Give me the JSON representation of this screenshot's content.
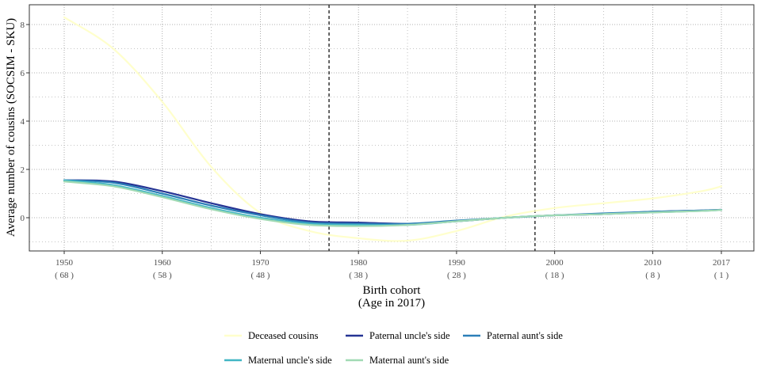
{
  "chart_data": {
    "type": "line",
    "title": "",
    "xlabel": "Birth cohort",
    "xlabel_sub": "(Age in 2017)",
    "ylabel": "Average number of cousins (SOCSIM - SKU)",
    "xlim": [
      1950,
      2017
    ],
    "ylim": [
      -1.5,
      8.8
    ],
    "grid": true,
    "legend_position": "bottom",
    "x_ticks": [
      {
        "year": 1950,
        "label": "1950",
        "age": "( 68 )"
      },
      {
        "year": 1960,
        "label": "1960",
        "age": "( 58 )"
      },
      {
        "year": 1970,
        "label": "1970",
        "age": "( 48 )"
      },
      {
        "year": 1980,
        "label": "1980",
        "age": "( 38 )"
      },
      {
        "year": 1990,
        "label": "1990",
        "age": "( 28 )"
      },
      {
        "year": 2000,
        "label": "2000",
        "age": "( 18 )"
      },
      {
        "year": 2010,
        "label": "2010",
        "age": "( 8 )"
      },
      {
        "year": 2017,
        "label": "2017",
        "age": "( 1 )"
      }
    ],
    "y_ticks": [
      {
        "value": 0,
        "label": "0"
      },
      {
        "value": 2,
        "label": "2"
      },
      {
        "value": 4,
        "label": "4"
      },
      {
        "value": 6,
        "label": "6"
      },
      {
        "value": 8,
        "label": "8"
      }
    ],
    "vlines": [
      1977,
      1998
    ],
    "series": [
      {
        "name": "Deceased cousins",
        "color": "#ffffcc",
        "x": [
          1950,
          1955,
          1960,
          1965,
          1970,
          1975,
          1980,
          1985,
          1990,
          1995,
          2000,
          2005,
          2010,
          2015,
          2017
        ],
        "y": [
          8.3,
          7.0,
          4.8,
          2.1,
          0.2,
          -0.55,
          -0.85,
          -0.95,
          -0.55,
          0.05,
          0.4,
          0.6,
          0.8,
          1.1,
          1.3
        ]
      },
      {
        "name": "Paternal uncle's side",
        "color": "#253494",
        "x": [
          1950,
          1955,
          1960,
          1965,
          1970,
          1975,
          1980,
          1985,
          1990,
          1995,
          2000,
          2005,
          2010,
          2015,
          2017
        ],
        "y": [
          1.55,
          1.5,
          1.1,
          0.6,
          0.15,
          -0.15,
          -0.2,
          -0.25,
          -0.15,
          0.0,
          0.1,
          0.15,
          0.25,
          0.3,
          0.33
        ]
      },
      {
        "name": "Paternal aunt's side",
        "color": "#2c7fb8",
        "x": [
          1950,
          1955,
          1960,
          1965,
          1970,
          1975,
          1980,
          1985,
          1990,
          1995,
          2000,
          2005,
          2010,
          2015,
          2017
        ],
        "y": [
          1.55,
          1.45,
          1.0,
          0.5,
          0.1,
          -0.2,
          -0.25,
          -0.25,
          -0.12,
          0.0,
          0.1,
          0.18,
          0.25,
          0.3,
          0.33
        ]
      },
      {
        "name": "Maternal uncle's side",
        "color": "#41b6c4",
        "x": [
          1950,
          1955,
          1960,
          1965,
          1970,
          1975,
          1980,
          1985,
          1990,
          1995,
          2000,
          2005,
          2010,
          2015,
          2017
        ],
        "y": [
          1.55,
          1.35,
          0.9,
          0.4,
          0.0,
          -0.25,
          -0.3,
          -0.3,
          -0.15,
          0.0,
          0.1,
          0.15,
          0.22,
          0.28,
          0.32
        ]
      },
      {
        "name": "Maternal aunt's side",
        "color": "#a1dab4",
        "x": [
          1950,
          1955,
          1960,
          1965,
          1970,
          1975,
          1980,
          1985,
          1990,
          1995,
          2000,
          2005,
          2010,
          2015,
          2017
        ],
        "y": [
          1.5,
          1.3,
          0.85,
          0.35,
          -0.05,
          -0.3,
          -0.35,
          -0.3,
          -0.15,
          0.0,
          0.1,
          0.15,
          0.22,
          0.28,
          0.32
        ]
      }
    ]
  }
}
